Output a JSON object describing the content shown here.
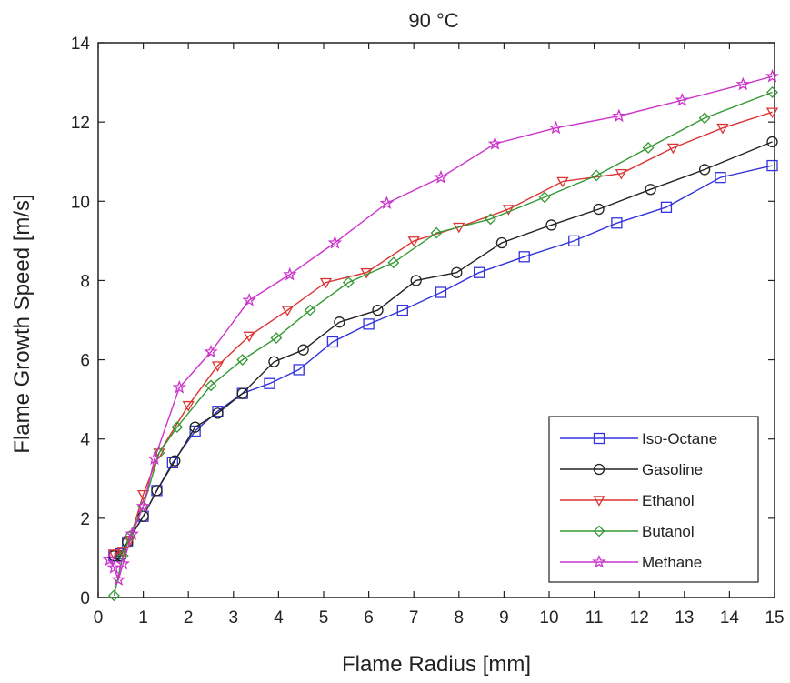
{
  "chart_data": {
    "type": "line",
    "title": "90 °C",
    "xlabel": "Flame Radius [mm]",
    "ylabel": "Flame Growth Speed [m/s]",
    "xlim": [
      0,
      15
    ],
    "ylim": [
      0,
      14
    ],
    "xticks": [
      0,
      1,
      2,
      3,
      4,
      5,
      6,
      7,
      8,
      9,
      10,
      11,
      12,
      13,
      14,
      15
    ],
    "yticks": [
      0,
      2,
      4,
      6,
      8,
      10,
      12,
      14
    ],
    "grid": false,
    "legend_position": "bottom-right",
    "series": [
      {
        "name": "Iso-Octane",
        "color": "#3333dd",
        "marker": "square",
        "points": [
          [
            0.35,
            1.05
          ],
          [
            0.5,
            1.1
          ],
          [
            0.65,
            1.4
          ],
          [
            1.0,
            2.05
          ],
          [
            1.3,
            2.7
          ],
          [
            1.65,
            3.4
          ],
          [
            2.15,
            4.2
          ],
          [
            2.65,
            4.7
          ],
          [
            3.2,
            5.15
          ],
          [
            3.8,
            5.4
          ],
          [
            4.45,
            5.75
          ],
          [
            5.2,
            6.45
          ],
          [
            6.0,
            6.9
          ],
          [
            6.75,
            7.25
          ],
          [
            7.6,
            7.7
          ],
          [
            8.45,
            8.2
          ],
          [
            9.45,
            8.6
          ],
          [
            10.55,
            9.0
          ],
          [
            11.5,
            9.45
          ],
          [
            12.6,
            9.85
          ],
          [
            13.8,
            10.6
          ],
          [
            14.95,
            10.9
          ]
        ]
      },
      {
        "name": "Gasoline",
        "color": "#222222",
        "marker": "circle",
        "points": [
          [
            0.35,
            1.05
          ],
          [
            0.5,
            1.05
          ],
          [
            0.65,
            1.4
          ],
          [
            1.0,
            2.05
          ],
          [
            1.3,
            2.7
          ],
          [
            1.7,
            3.45
          ],
          [
            2.15,
            4.3
          ],
          [
            2.65,
            4.65
          ],
          [
            3.2,
            5.15
          ],
          [
            3.9,
            5.95
          ],
          [
            4.55,
            6.25
          ],
          [
            5.35,
            6.95
          ],
          [
            6.2,
            7.25
          ],
          [
            7.05,
            8.0
          ],
          [
            7.95,
            8.2
          ],
          [
            8.95,
            8.95
          ],
          [
            10.05,
            9.4
          ],
          [
            11.1,
            9.8
          ],
          [
            12.25,
            10.3
          ],
          [
            13.45,
            10.8
          ],
          [
            14.95,
            11.5
          ]
        ]
      },
      {
        "name": "Ethanol",
        "color": "#dd3333",
        "marker": "triangle-down",
        "points": [
          [
            0.35,
            1.1
          ],
          [
            0.55,
            1.15
          ],
          [
            0.7,
            1.45
          ],
          [
            1.0,
            2.6
          ],
          [
            1.35,
            3.65
          ],
          [
            2.0,
            4.85
          ],
          [
            2.65,
            5.85
          ],
          [
            3.35,
            6.6
          ],
          [
            4.2,
            7.25
          ],
          [
            5.05,
            7.95
          ],
          [
            5.95,
            8.2
          ],
          [
            7.0,
            9.0
          ],
          [
            8.0,
            9.35
          ],
          [
            9.1,
            9.8
          ],
          [
            10.3,
            10.5
          ],
          [
            11.6,
            10.7
          ],
          [
            12.75,
            11.35
          ],
          [
            13.85,
            11.85
          ],
          [
            14.95,
            12.25
          ]
        ]
      },
      {
        "name": "Butanol",
        "color": "#339933",
        "marker": "diamond",
        "points": [
          [
            0.35,
            0.05
          ],
          [
            0.55,
            1.05
          ],
          [
            0.7,
            1.55
          ],
          [
            1.0,
            2.3
          ],
          [
            1.35,
            3.65
          ],
          [
            1.75,
            4.3
          ],
          [
            2.5,
            5.35
          ],
          [
            3.2,
            6.0
          ],
          [
            3.95,
            6.55
          ],
          [
            4.7,
            7.25
          ],
          [
            5.55,
            7.95
          ],
          [
            6.55,
            8.45
          ],
          [
            7.5,
            9.2
          ],
          [
            8.7,
            9.55
          ],
          [
            9.9,
            10.1
          ],
          [
            11.05,
            10.65
          ],
          [
            12.2,
            11.35
          ],
          [
            13.45,
            12.1
          ],
          [
            14.95,
            12.75
          ]
        ]
      },
      {
        "name": "Methane",
        "color": "#cc33cc",
        "marker": "star",
        "points": [
          [
            0.25,
            0.95
          ],
          [
            0.35,
            0.75
          ],
          [
            0.45,
            0.45
          ],
          [
            0.55,
            0.85
          ],
          [
            0.75,
            1.6
          ],
          [
            1.0,
            2.3
          ],
          [
            1.25,
            3.5
          ],
          [
            1.8,
            5.3
          ],
          [
            2.5,
            6.2
          ],
          [
            3.35,
            7.5
          ],
          [
            4.25,
            8.15
          ],
          [
            5.25,
            8.95
          ],
          [
            6.4,
            9.95
          ],
          [
            7.6,
            10.6
          ],
          [
            8.8,
            11.45
          ],
          [
            10.15,
            11.85
          ],
          [
            11.55,
            12.15
          ],
          [
            12.95,
            12.55
          ],
          [
            14.3,
            12.95
          ],
          [
            14.95,
            13.15
          ]
        ]
      }
    ]
  }
}
